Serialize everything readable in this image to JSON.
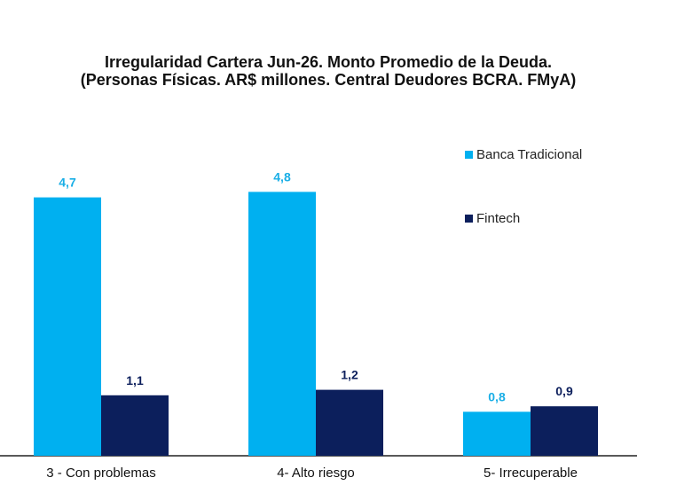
{
  "chart_data": {
    "type": "bar",
    "title": "Irregularidad Cartera Jun-26. Monto Promedio de la Deuda.",
    "subtitle": "(Personas Físicas. AR$ millones. Central Deudores BCRA. FMyA)",
    "categories": [
      "3 - Con problemas",
      "4- Alto riesgo",
      "5- Irrecuperable"
    ],
    "series": [
      {
        "name": "Banca Tradicional",
        "values": [
          4.7,
          4.8,
          0.8
        ],
        "labels": [
          "4,7",
          "4,8",
          "0,8"
        ],
        "color": "#00b0f0",
        "label_color": "#19aee6"
      },
      {
        "name": "Fintech",
        "values": [
          1.1,
          1.2,
          0.9
        ],
        "labels": [
          "1,1",
          "1,2",
          "0,9"
        ],
        "color": "#0c1f5c",
        "label_color": "#0c1f5c"
      }
    ],
    "ylim": [
      0,
      5.5
    ],
    "grid": false,
    "legend_position": "top-right"
  }
}
